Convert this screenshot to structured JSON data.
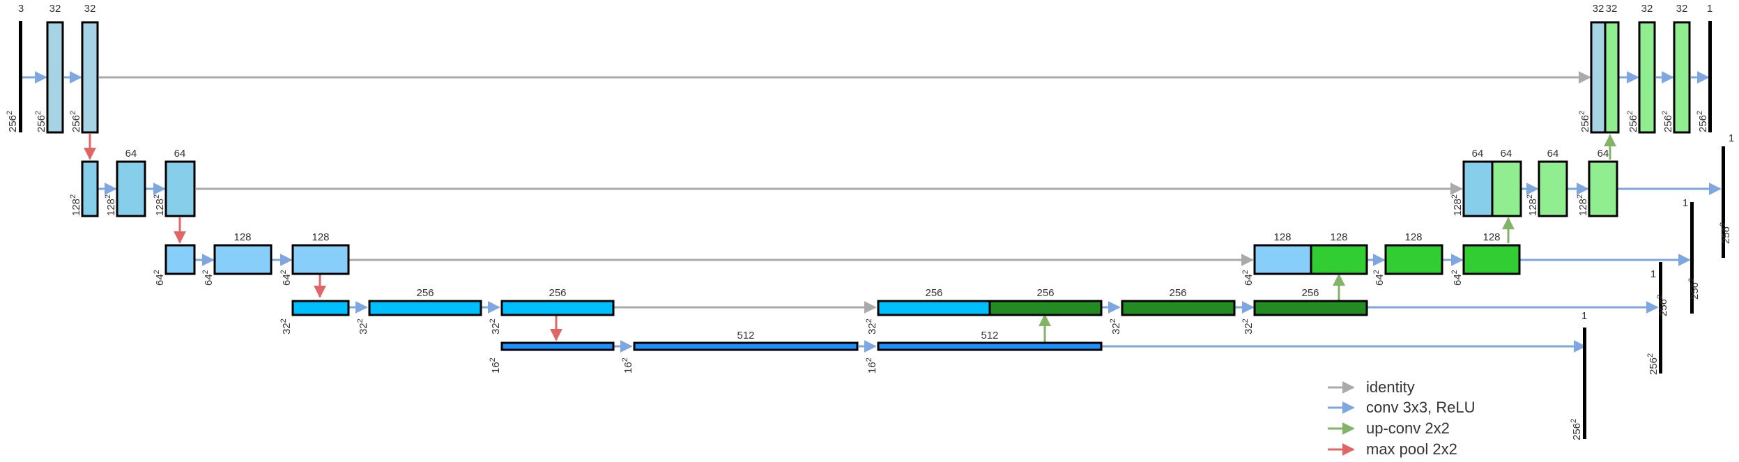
{
  "colors": {
    "enc1": "#a6d4e4",
    "enc2": "#87ceeb",
    "enc3": "#87cefa",
    "enc4": "#00bfff",
    "enc5": "#1e90ff",
    "dec1": "#90ee90",
    "dec2": "#32cd32",
    "dec3": "#228b22",
    "identity": "#aaaaaa",
    "conv": "#7ea6e0",
    "upconv": "#82b366",
    "maxpool": "#e06666"
  },
  "legend": {
    "identity": "identity",
    "conv": "conv 3x3, ReLU",
    "upconv": "up-conv 2x2",
    "maxpool": "max pool 2x2"
  },
  "labels": {
    "c3": "3",
    "c32": "32",
    "c64": "64",
    "c128": "128",
    "c256": "256",
    "c512": "512",
    "c1": "1",
    "s256": "256",
    "s128": "128",
    "s64": "64",
    "s32": "32",
    "s16": "16",
    "sq": "2"
  }
}
